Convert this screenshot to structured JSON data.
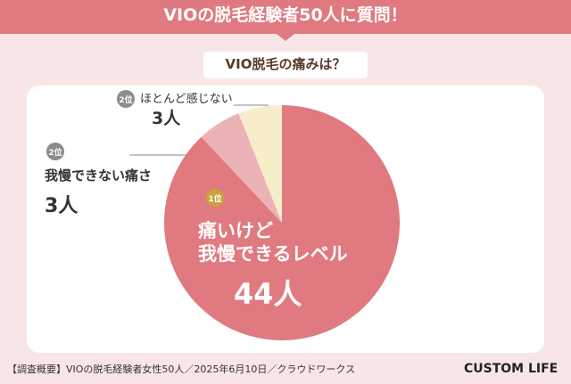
{
  "chart_data": {
    "type": "pie",
    "title": "VIOの脱毛経験者50人に質問！",
    "subtitle": "VIO脱毛の痛みは？",
    "categories": [
      "痛いけど\n我慢できるレベル",
      "我慢できない痛さ",
      "ほとんど感じない"
    ],
    "values": [
      44,
      3,
      3
    ],
    "value_labels": [
      "44人",
      "3人",
      "3人"
    ],
    "ranks": [
      "1位",
      "2位",
      "2位"
    ],
    "colors": [
      "#e07a80",
      "#ebb3b5",
      "#f8edcb"
    ],
    "footnote": "【調査概要】VIOの脱毛経験者女性50人／2025年6月10日／クラウドワークス",
    "logo": "CUSTOM LIFE"
  }
}
